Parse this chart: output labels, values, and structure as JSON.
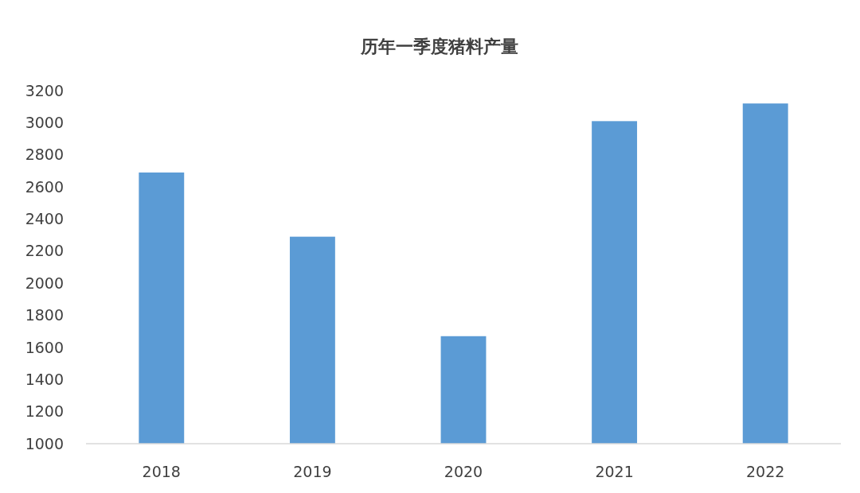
{
  "chart_data": {
    "type": "bar",
    "title": "历年一季度猪料产量",
    "categories": [
      "2018",
      "2019",
      "2020",
      "2021",
      "2022"
    ],
    "values": [
      2690,
      2290,
      1670,
      3010,
      3120
    ],
    "color": "#5b9bd5",
    "ylim": [
      1000,
      3200
    ],
    "yticks": [
      1000,
      1200,
      1400,
      1600,
      1800,
      2000,
      2200,
      2400,
      2600,
      2800,
      3000,
      3200
    ],
    "grid": false
  }
}
